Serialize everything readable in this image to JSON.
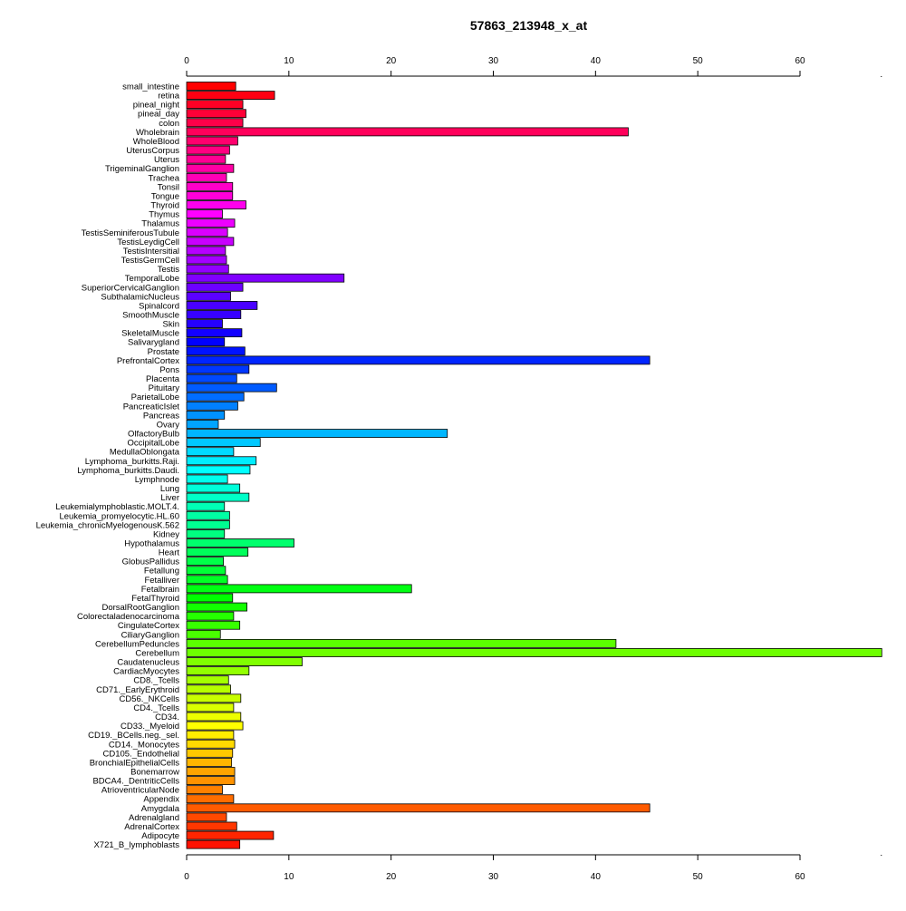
{
  "chart_data": {
    "type": "bar",
    "orientation": "horizontal",
    "title": "57863_213948_x_at",
    "xlabel": "",
    "ylabel": "",
    "xlim": [
      0,
      68
    ],
    "x_ticks": [
      0,
      10,
      20,
      30,
      40,
      50,
      60
    ],
    "axes": [
      "top",
      "bottom"
    ],
    "grid": false,
    "colors": "rainbow gradient from red at the top through magenta, blue, cyan, green, yellow, orange back to red at the bottom",
    "categories": [
      "small_intestine",
      "retina",
      "pineal_night",
      "pineal_day",
      "colon",
      "Wholebrain",
      "WholeBlood",
      "UterusCorpus",
      "Uterus",
      "TrigeminalGanglion",
      "Trachea",
      "Tonsil",
      "Tongue",
      "Thyroid",
      "Thymus",
      "Thalamus",
      "TestisSeminiferousTubule",
      "TestisLeydigCell",
      "TestisIntersitial",
      "TestisGermCell",
      "Testis",
      "TemporalLobe",
      "SuperiorCervicalGanglion",
      "SubthalamicNucleus",
      "Spinalcord",
      "SmoothMuscle",
      "Skin",
      "SkeletalMuscle",
      "Salivarygland",
      "Prostate",
      "PrefrontalCortex",
      "Pons",
      "Placenta",
      "Pituitary",
      "ParietalLobe",
      "PancreaticIslet",
      "Pancreas",
      "Ovary",
      "OlfactoryBulb",
      "OccipitalLobe",
      "MedullaOblongata",
      "Lymphoma_burkitts.Raji.",
      "Lymphoma_burkitts.Daudi.",
      "Lymphnode",
      "Lung",
      "Liver",
      "Leukemialymphoblastic.MOLT.4.",
      "Leukemia_promyelocytic.HL.60",
      "Leukemia_chronicMyelogenousK.562",
      "Kidney",
      "Hypothalamus",
      "Heart",
      "GlobusPallidus",
      "Fetallung",
      "Fetalliver",
      "Fetalbrain",
      "FetalThyroid",
      "DorsalRootGanglion",
      "Colorectaladenocarcinoma",
      "CingulateCortex",
      "CiliaryGanglion",
      "CerebellumPeduncles",
      "Cerebellum",
      "Caudatenucleus",
      "CardiacMyocytes",
      "CD8._Tcells",
      "CD71._EarlyErythroid",
      "CD56._NKCells",
      "CD4._Tcells",
      "CD34.",
      "CD33._Myeloid",
      "CD19._BCells.neg._sel.",
      "CD14._Monocytes",
      "CD105._Endothelial",
      "BronchialEpithelialCells",
      "Bonemarrow",
      "BDCA4._DentriticCells",
      "AtrioventricularNode",
      "Appendix",
      "Amygdala",
      "Adrenalgland",
      "AdrenalCortex",
      "Adipocyte",
      "X721_B_lymphoblasts"
    ],
    "values": [
      4.8,
      8.6,
      5.5,
      5.8,
      5.5,
      43.2,
      5.0,
      4.2,
      3.8,
      4.6,
      3.9,
      4.5,
      4.5,
      5.8,
      3.5,
      4.7,
      4.0,
      4.6,
      3.8,
      3.9,
      4.1,
      15.4,
      5.5,
      4.3,
      6.9,
      5.3,
      3.5,
      5.4,
      3.7,
      5.7,
      45.3,
      6.1,
      4.9,
      8.8,
      5.6,
      5.0,
      3.7,
      3.1,
      25.5,
      7.2,
      4.6,
      6.8,
      6.2,
      4.0,
      5.2,
      6.1,
      3.7,
      4.2,
      4.2,
      3.7,
      10.5,
      6.0,
      3.6,
      3.8,
      4.0,
      22.0,
      4.5,
      5.9,
      4.6,
      5.2,
      3.3,
      42.0,
      68.0,
      11.3,
      6.1,
      4.1,
      4.3,
      5.3,
      4.6,
      5.3,
      5.5,
      4.6,
      4.7,
      4.5,
      4.4,
      4.7,
      4.7,
      3.5,
      4.6,
      45.3,
      3.9,
      4.9,
      8.5,
      5.2
    ]
  }
}
